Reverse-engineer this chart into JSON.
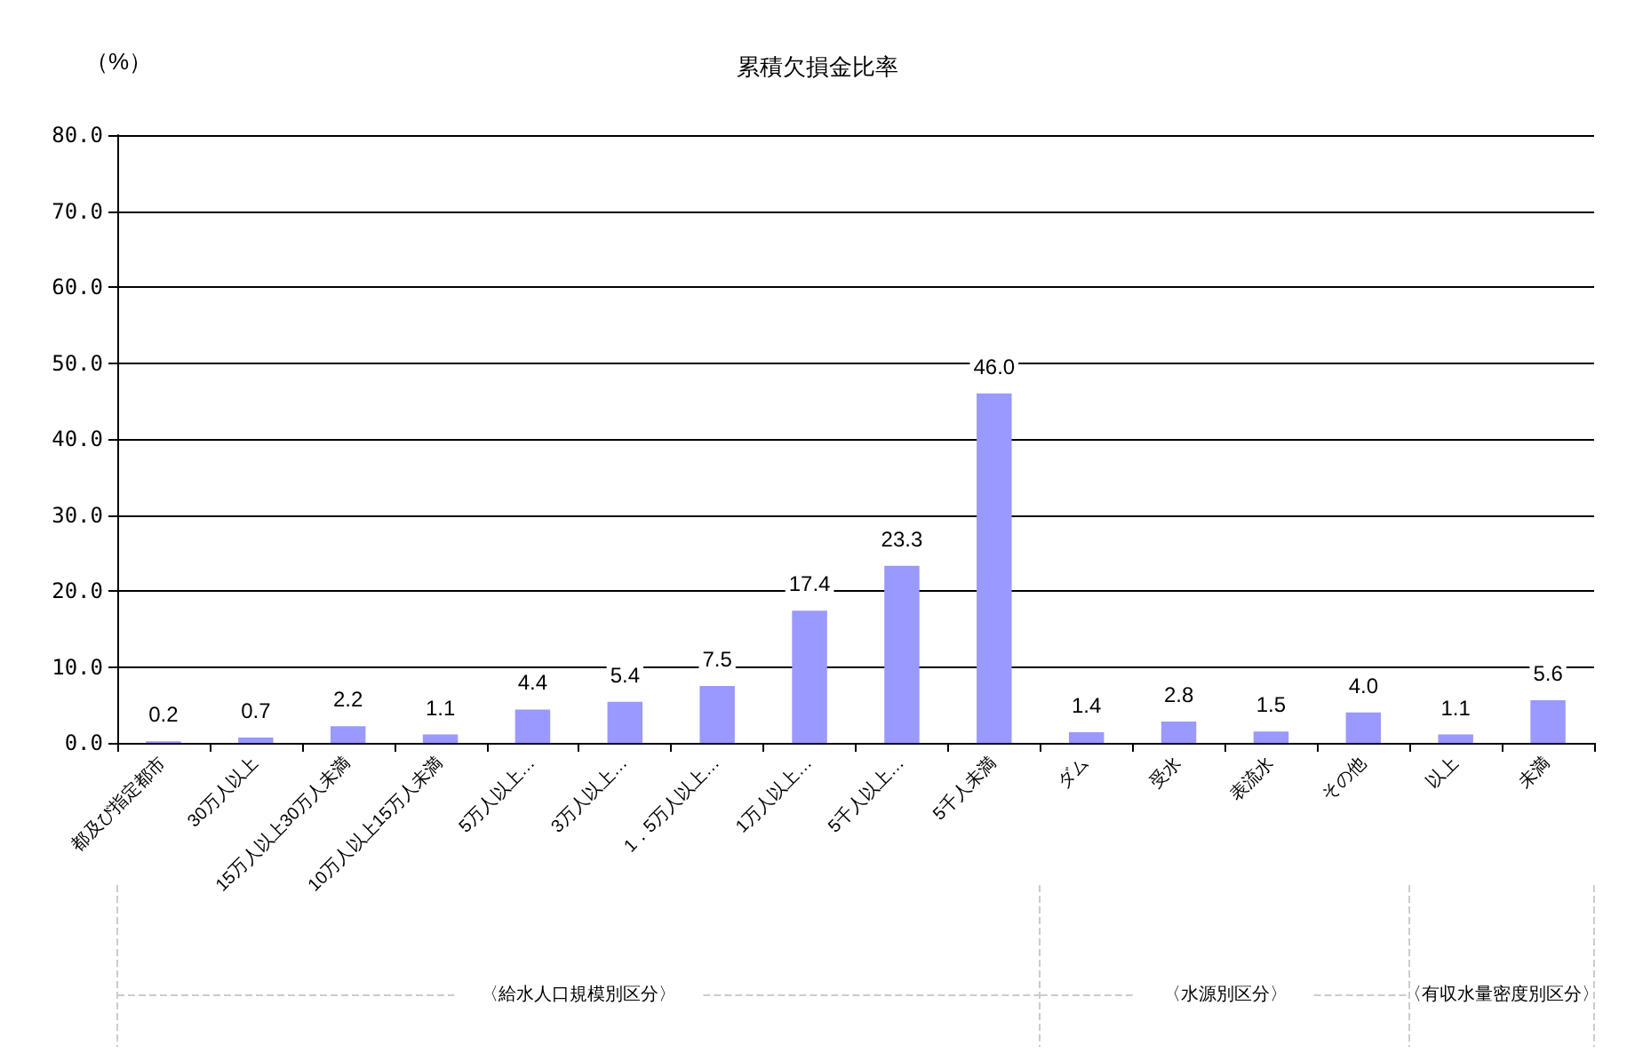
{
  "chart_data": {
    "type": "bar",
    "title": "累積欠損金比率",
    "ylabel": "（%）",
    "categories": [
      "都及び指定都市",
      "30万人以上",
      "15万人以上30万人未満",
      "10万人以上15万人未満",
      "5万人以上…",
      "3万人以上…",
      "1．5万人以上…",
      "1万人以上…",
      "5千人以上…",
      "5千人未満",
      "ダム",
      "受水",
      "表流水",
      "その他",
      "以上",
      "未満"
    ],
    "values": [
      0.2,
      0.7,
      2.2,
      1.1,
      4.4,
      5.4,
      7.5,
      17.4,
      23.3,
      46.0,
      1.4,
      2.8,
      1.5,
      4.0,
      1.1,
      5.6
    ],
    "color": "#9999ff",
    "value_labels": [
      "0.2",
      "0.7",
      "2.2",
      "1.1",
      "4.4",
      "5.4",
      "7.5",
      "17.4",
      "23.3",
      "46.0",
      "1.4",
      "2.8",
      "1.5",
      "4.0",
      "1.1",
      "5.6"
    ],
    "ylim": [
      0,
      80
    ],
    "yticks": [
      {
        "value": 0,
        "label": "0.0"
      },
      {
        "value": 10,
        "label": "10.0"
      },
      {
        "value": 20,
        "label": "20.0"
      },
      {
        "value": 30,
        "label": "30.0"
      },
      {
        "value": 40,
        "label": "40.0"
      },
      {
        "value": 50,
        "label": "50.0"
      },
      {
        "value": 60,
        "label": "60.0"
      },
      {
        "value": 70,
        "label": "70.0"
      },
      {
        "value": 80,
        "label": "80.0"
      }
    ],
    "grid": "y",
    "annotations": [
      "〈給水人口規模別区分〉",
      "〈水源別区分〉",
      "〈有収水量密度別区分〉"
    ]
  }
}
